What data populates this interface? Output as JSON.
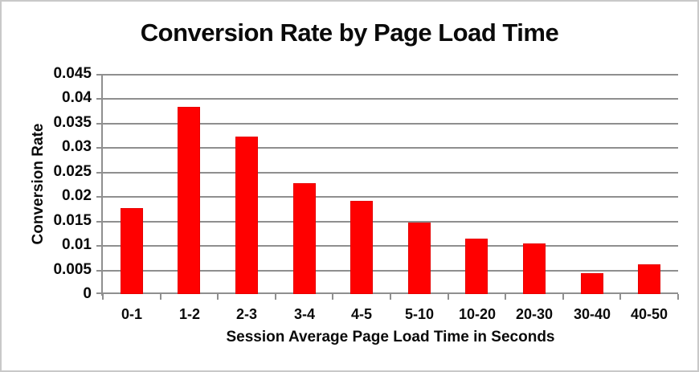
{
  "title": "Conversion Rate by Page Load Time",
  "chart_data": {
    "type": "bar",
    "title": "Conversion Rate by Page Load Time",
    "categories": [
      "0-1",
      "1-2",
      "2-3",
      "3-4",
      "4-5",
      "5-10",
      "10-20",
      "20-30",
      "30-40",
      "40-50"
    ],
    "values": [
      0.0175,
      0.0383,
      0.0322,
      0.0227,
      0.0191,
      0.0146,
      0.0113,
      0.0103,
      0.0043,
      0.0061
    ],
    "xlabel": "Session Average Page Load Time in Seconds",
    "ylabel": "Conversion Rate",
    "ylim": [
      0,
      0.045
    ],
    "ytick_step": 0.005,
    "yticks": [
      "0.045",
      "0.04",
      "0.035",
      "0.03",
      "0.025",
      "0.02",
      "0.015",
      "0.01",
      "0.005",
      "0"
    ],
    "grid": true,
    "legend": false,
    "bar_color": "#ff0000",
    "gridline_color": "#8f8f8f",
    "background_color": "#ffffff",
    "border_color": "#c9c9c9",
    "text_color": "#0a0a0a"
  }
}
